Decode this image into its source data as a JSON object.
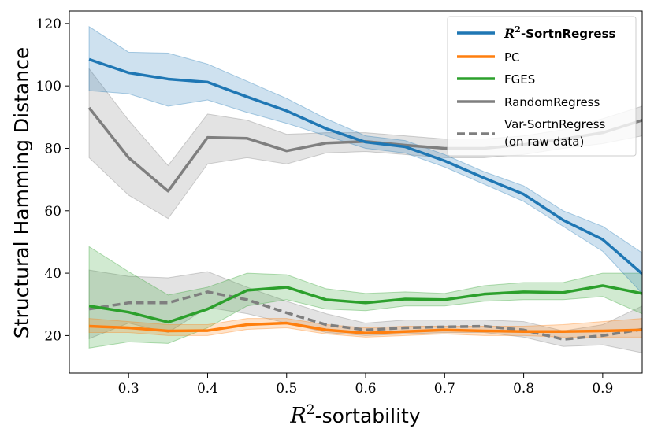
{
  "chart_data": {
    "type": "line",
    "title": "",
    "xlabel_math": "R",
    "xlabel_sup": "2",
    "xlabel_suffix": "-sortability",
    "ylabel": "Structural Hamming Distance",
    "xlim": [
      0.225,
      0.95
    ],
    "ylim": [
      8,
      124
    ],
    "xticks": [
      0.3,
      0.4,
      0.5,
      0.6,
      0.7,
      0.8,
      0.9
    ],
    "xtick_labels": [
      "0.3",
      "0.4",
      "0.5",
      "0.6",
      "0.7",
      "0.8",
      "0.9"
    ],
    "yticks": [
      20,
      40,
      60,
      80,
      100,
      120
    ],
    "ytick_labels": [
      "20",
      "40",
      "60",
      "80",
      "100",
      "120"
    ],
    "x": [
      0.25,
      0.3,
      0.35,
      0.4,
      0.45,
      0.5,
      0.55,
      0.6,
      0.65,
      0.7,
      0.75,
      0.8,
      0.85,
      0.9,
      0.95
    ],
    "legend_position": "top-right",
    "series": [
      {
        "id": "r2",
        "name_math": "R",
        "name_sup": "2",
        "name_suffix": "-SortnRegress",
        "color": "#1f77b4",
        "dashed": false,
        "values": [
          108.5,
          104.2,
          102.2,
          101.2,
          96.5,
          92.0,
          86.3,
          82.0,
          80.5,
          76.0,
          70.5,
          65.3,
          57.0,
          50.8,
          39.8
        ],
        "lower": [
          98.5,
          97.5,
          93.5,
          95.5,
          91.5,
          88.0,
          84.0,
          80.0,
          78.5,
          74.0,
          68.5,
          63.0,
          55.0,
          47.0,
          33.5
        ],
        "upper": [
          119.0,
          110.8,
          110.5,
          107.0,
          101.5,
          96.0,
          89.5,
          84.0,
          82.5,
          78.0,
          72.5,
          68.0,
          60.0,
          55.0,
          46.5
        ]
      },
      {
        "id": "pc",
        "name": "PC",
        "color": "#ff7f0e",
        "dashed": false,
        "values": [
          23.0,
          22.5,
          21.5,
          21.6,
          23.5,
          24.0,
          21.8,
          20.8,
          21.3,
          21.8,
          21.5,
          21.3,
          21.3,
          21.5,
          21.8
        ],
        "lower": [
          21.0,
          21.0,
          20.0,
          20.0,
          22.0,
          22.5,
          20.5,
          19.5,
          20.0,
          20.5,
          20.0,
          20.0,
          19.5,
          19.5,
          19.5
        ],
        "upper": [
          25.5,
          24.5,
          23.5,
          23.5,
          25.5,
          25.5,
          23.5,
          22.5,
          23.0,
          23.0,
          23.0,
          23.0,
          23.5,
          24.5,
          25.5
        ]
      },
      {
        "id": "fges",
        "name": "FGES",
        "color": "#2ca02c",
        "dashed": false,
        "values": [
          29.5,
          27.5,
          24.3,
          28.5,
          34.5,
          35.5,
          31.5,
          30.5,
          31.7,
          31.5,
          33.3,
          34.0,
          33.8,
          36.0,
          33.5
        ],
        "lower": [
          16.0,
          18.0,
          17.5,
          22.5,
          29.5,
          31.5,
          28.5,
          28.0,
          29.5,
          29.5,
          31.0,
          31.5,
          31.5,
          32.5,
          27.0
        ],
        "upper": [
          48.5,
          40.5,
          33.0,
          35.5,
          40.0,
          39.5,
          35.0,
          33.5,
          34.0,
          33.5,
          36.0,
          37.0,
          37.0,
          40.0,
          40.0
        ]
      },
      {
        "id": "random",
        "name": "RandomRegress",
        "color": "#7f7f7f",
        "dashed": false,
        "values": [
          93.0,
          77.0,
          66.3,
          83.5,
          83.2,
          79.2,
          81.7,
          82.2,
          81.0,
          80.0,
          80.0,
          81.2,
          83.0,
          85.0,
          89.0
        ],
        "lower": [
          77.0,
          65.0,
          57.5,
          75.0,
          77.0,
          75.0,
          78.5,
          79.0,
          78.0,
          77.0,
          77.0,
          78.0,
          80.0,
          81.5,
          84.0
        ],
        "upper": [
          105.5,
          89.0,
          74.5,
          91.0,
          89.0,
          84.5,
          85.0,
          85.0,
          84.0,
          83.0,
          83.0,
          84.0,
          86.0,
          89.5,
          93.5
        ]
      },
      {
        "id": "var",
        "name_line1": "Var-SortnRegress",
        "name_line2": "(on raw data)",
        "color": "#7f7f7f",
        "dashed": true,
        "values": [
          28.5,
          30.5,
          30.5,
          34.0,
          31.5,
          27.3,
          23.5,
          21.8,
          22.5,
          22.8,
          23.0,
          21.8,
          18.8,
          20.0,
          22.0
        ],
        "lower": [
          19.0,
          24.0,
          21.0,
          29.0,
          27.0,
          24.0,
          21.0,
          20.0,
          20.5,
          21.0,
          21.0,
          19.5,
          16.5,
          17.0,
          14.5
        ],
        "upper": [
          41.0,
          39.0,
          38.5,
          40.5,
          35.5,
          31.0,
          27.0,
          24.0,
          25.0,
          25.0,
          25.0,
          24.5,
          21.5,
          23.5,
          29.5
        ]
      }
    ]
  }
}
